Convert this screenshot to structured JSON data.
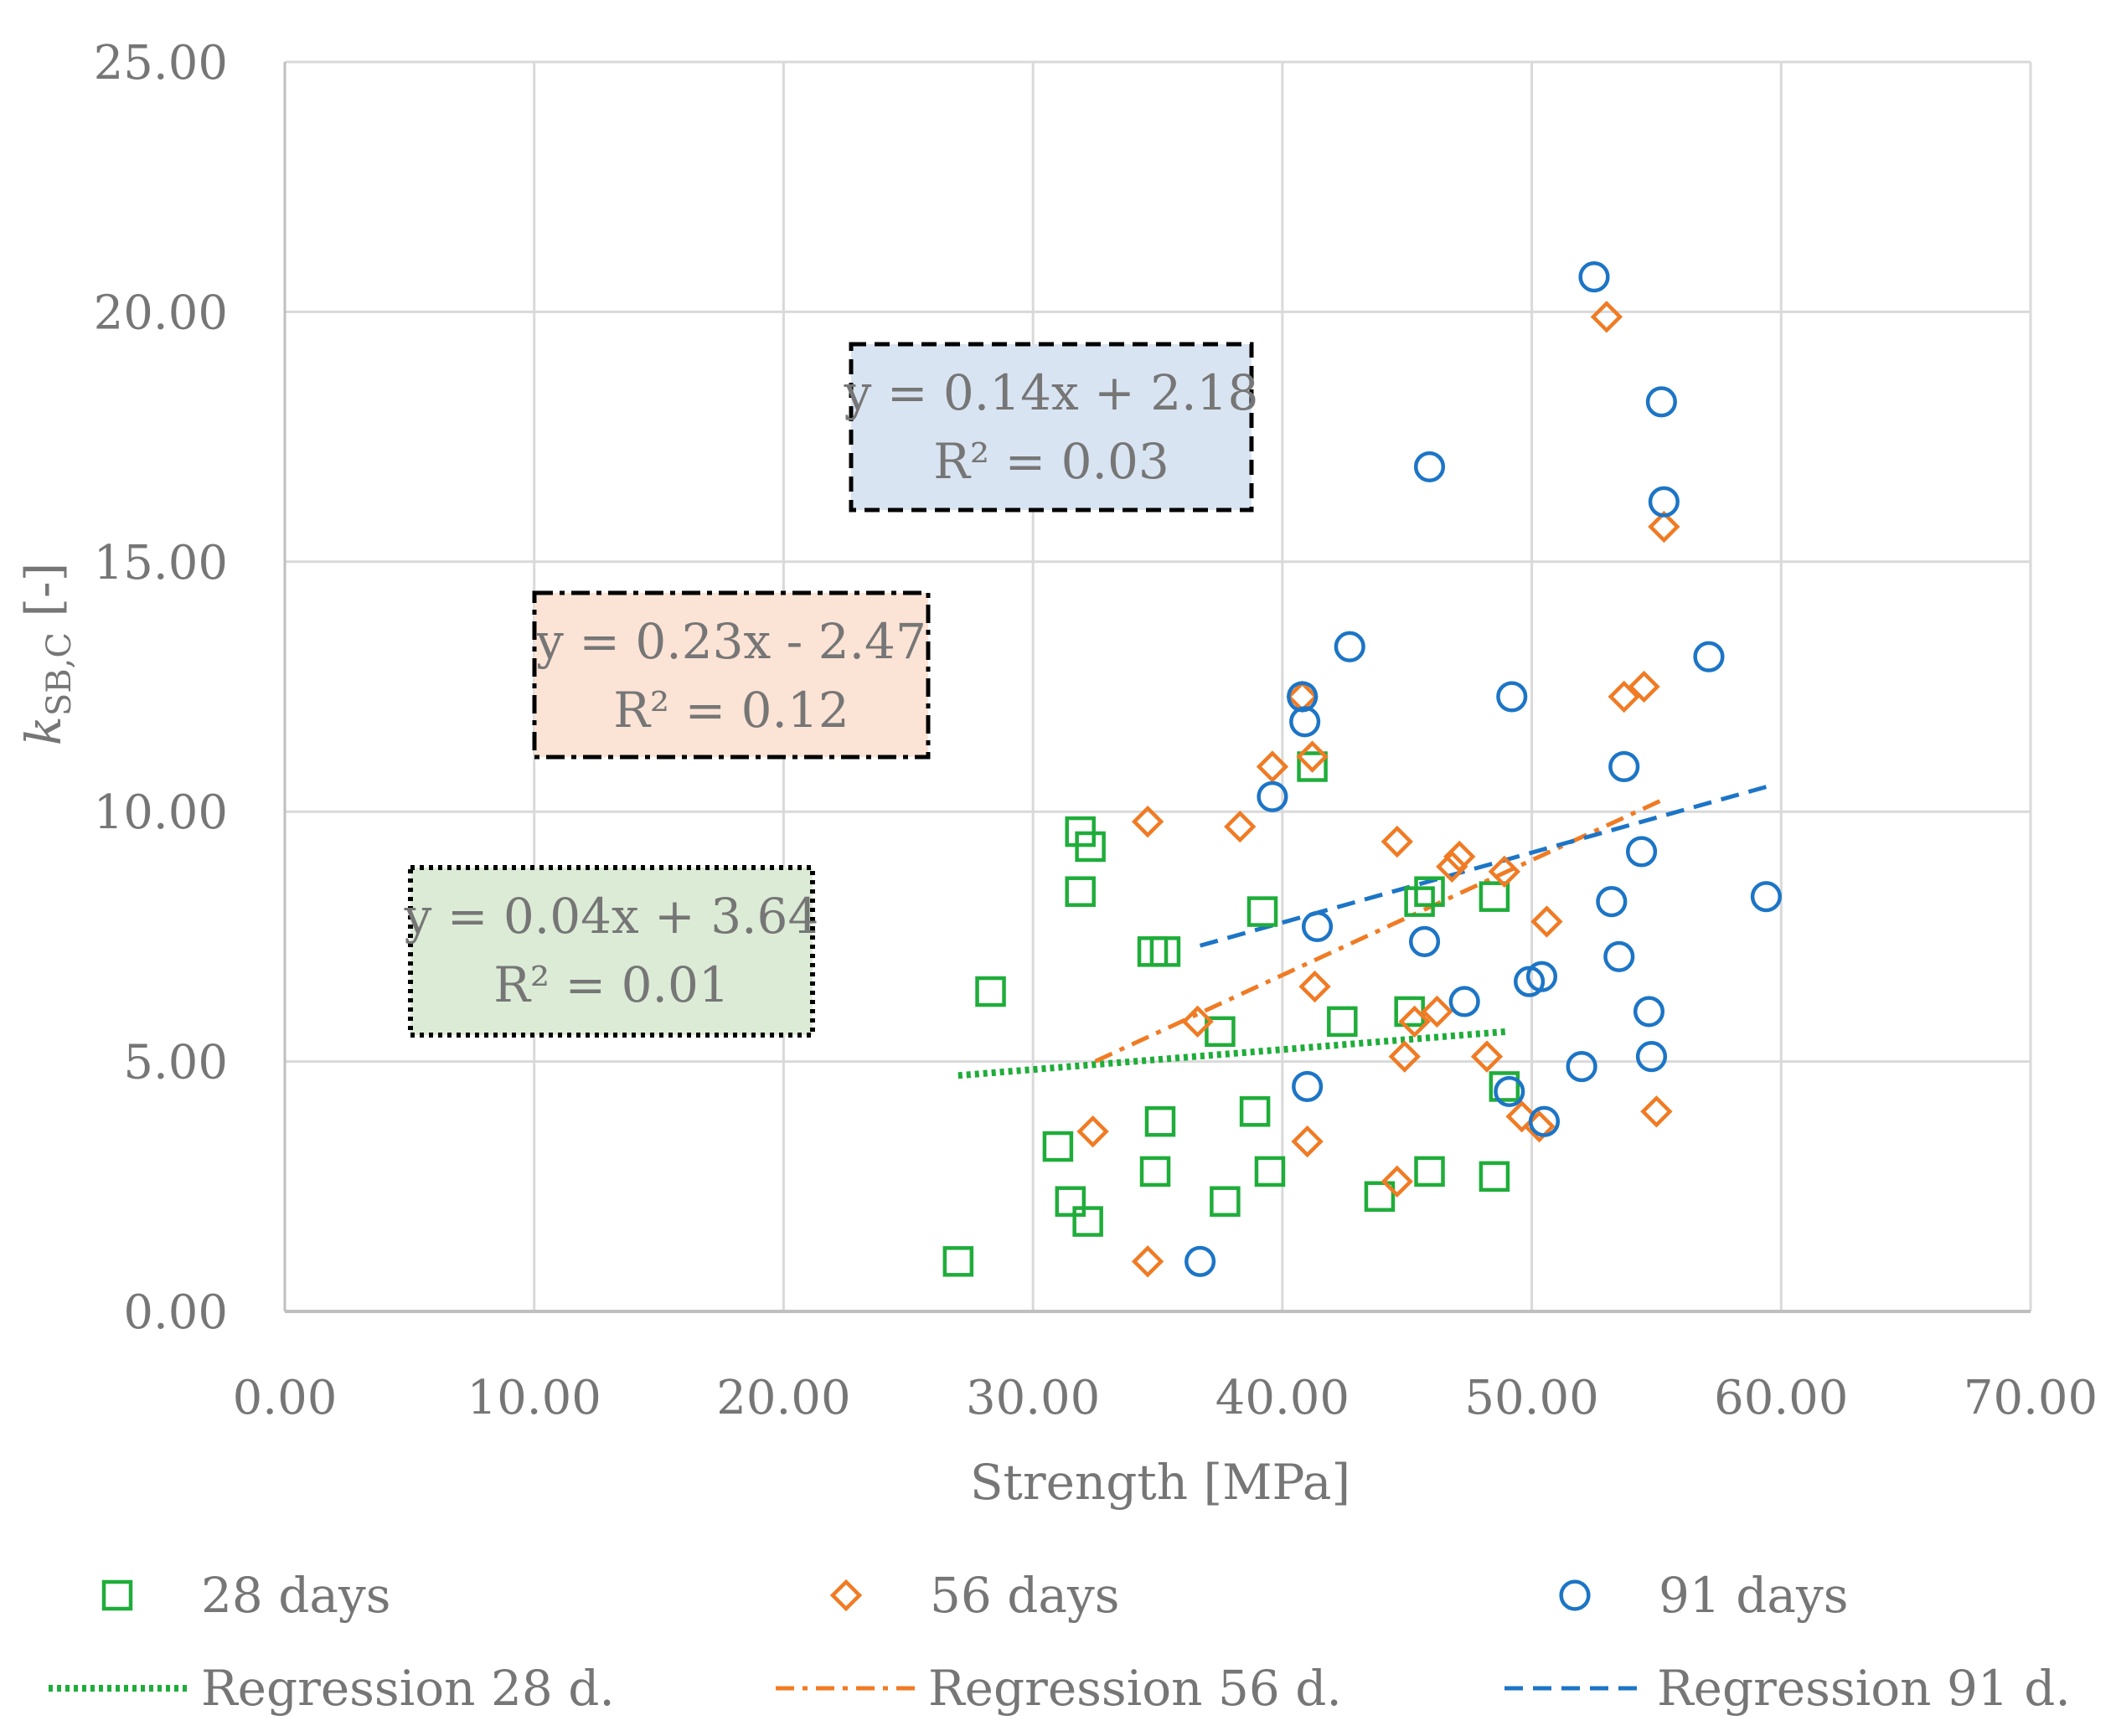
{
  "chart_data": {
    "type": "scatter",
    "xlabel": "Strength [MPa]",
    "ylabel": {
      "main": "k",
      "sub": "SB,C",
      "unit": " [-]"
    },
    "xlim": [
      0,
      70
    ],
    "ylim": [
      0,
      25
    ],
    "x_ticks": [
      "0.00",
      "10.00",
      "20.00",
      "30.00",
      "40.00",
      "50.00",
      "60.00",
      "70.00"
    ],
    "y_ticks": [
      "0.00",
      "5.00",
      "10.00",
      "15.00",
      "20.00",
      "25.00"
    ],
    "grid": true,
    "legend_position": "bottom",
    "series": [
      {
        "name": "28 days",
        "marker": "square",
        "color": "#1fad3a",
        "points": [
          [
            27.0,
            1.0
          ],
          [
            28.3,
            6.4
          ],
          [
            31.0,
            3.3
          ],
          [
            31.5,
            2.2
          ],
          [
            31.9,
            9.6
          ],
          [
            31.9,
            8.4
          ],
          [
            32.2,
            1.8
          ],
          [
            32.3,
            9.3
          ],
          [
            34.8,
            7.2
          ],
          [
            35.3,
            7.2
          ],
          [
            34.9,
            2.8
          ],
          [
            35.1,
            3.8
          ],
          [
            37.5,
            5.6
          ],
          [
            37.7,
            2.2
          ],
          [
            38.9,
            4.0
          ],
          [
            39.2,
            8.0
          ],
          [
            39.5,
            2.8
          ],
          [
            41.2,
            10.9
          ],
          [
            42.4,
            5.8
          ],
          [
            43.9,
            2.3
          ],
          [
            45.1,
            6.0
          ],
          [
            45.5,
            8.2
          ],
          [
            45.9,
            8.4
          ],
          [
            45.9,
            2.8
          ],
          [
            48.5,
            8.3
          ],
          [
            48.5,
            2.7
          ],
          [
            48.9,
            4.5
          ]
        ]
      },
      {
        "name": "56 days",
        "marker": "diamond",
        "color": "#f07b24",
        "points": [
          [
            32.4,
            3.6
          ],
          [
            34.6,
            9.8
          ],
          [
            34.6,
            1.0
          ],
          [
            36.6,
            5.8
          ],
          [
            38.3,
            9.7
          ],
          [
            39.6,
            10.9
          ],
          [
            40.8,
            12.3
          ],
          [
            41.0,
            3.4
          ],
          [
            41.2,
            11.1
          ],
          [
            41.3,
            6.5
          ],
          [
            44.6,
            9.4
          ],
          [
            44.6,
            2.6
          ],
          [
            44.9,
            5.1
          ],
          [
            45.3,
            5.8
          ],
          [
            46.2,
            6.0
          ],
          [
            46.8,
            8.9
          ],
          [
            47.1,
            9.1
          ],
          [
            48.2,
            5.1
          ],
          [
            48.9,
            8.8
          ],
          [
            49.6,
            3.9
          ],
          [
            50.3,
            3.7
          ],
          [
            50.6,
            7.8
          ],
          [
            53.0,
            19.9
          ],
          [
            53.7,
            12.3
          ],
          [
            54.5,
            12.5
          ],
          [
            55.0,
            4.0
          ],
          [
            55.3,
            15.7
          ]
        ]
      },
      {
        "name": "91 days",
        "marker": "circle",
        "color": "#1c75c6",
        "points": [
          [
            36.7,
            1.0
          ],
          [
            39.6,
            10.3
          ],
          [
            40.8,
            12.3
          ],
          [
            40.9,
            11.8
          ],
          [
            41.0,
            4.5
          ],
          [
            41.4,
            7.7
          ],
          [
            42.7,
            13.3
          ],
          [
            45.7,
            7.4
          ],
          [
            45.9,
            16.9
          ],
          [
            47.3,
            6.2
          ],
          [
            49.2,
            12.3
          ],
          [
            49.1,
            4.4
          ],
          [
            49.9,
            6.6
          ],
          [
            50.4,
            6.7
          ],
          [
            50.5,
            3.8
          ],
          [
            52.0,
            4.9
          ],
          [
            52.5,
            20.7
          ],
          [
            53.2,
            8.2
          ],
          [
            53.5,
            7.1
          ],
          [
            53.7,
            10.9
          ],
          [
            54.4,
            9.2
          ],
          [
            54.7,
            6.0
          ],
          [
            54.8,
            5.1
          ],
          [
            55.2,
            18.2
          ],
          [
            55.3,
            16.2
          ],
          [
            57.1,
            13.1
          ],
          [
            59.4,
            8.3
          ]
        ]
      }
    ],
    "regressions": [
      {
        "name": "Regression 28 d.",
        "color": "#1fad3a",
        "dash": "dotted",
        "x_range": [
          27.0,
          49.0
        ],
        "equation": "y = 0.04x + 3.64",
        "r2": "R² = 0.01",
        "box_fill": "#dcebd6"
      },
      {
        "name": "Regression 56 d.",
        "color": "#f07b24",
        "dash": "dashdot",
        "x_range": [
          32.5,
          55.3
        ],
        "equation": "y = 0.23x - 2.47",
        "r2": "R² = 0.12",
        "box_fill": "#fbe3d5"
      },
      {
        "name": "Regression 91 d.",
        "color": "#1c75c6",
        "dash": "dashed",
        "x_range": [
          36.7,
          59.4
        ],
        "equation": "y = 0.14x + 2.18",
        "r2": "R² = 0.03",
        "box_fill": "#d9e4f2"
      }
    ],
    "line_params": [
      {
        "slope": 0.04,
        "intercept": 3.64
      },
      {
        "slope": 0.23,
        "intercept": -2.47
      },
      {
        "slope": 0.14,
        "intercept": 2.18
      }
    ]
  }
}
